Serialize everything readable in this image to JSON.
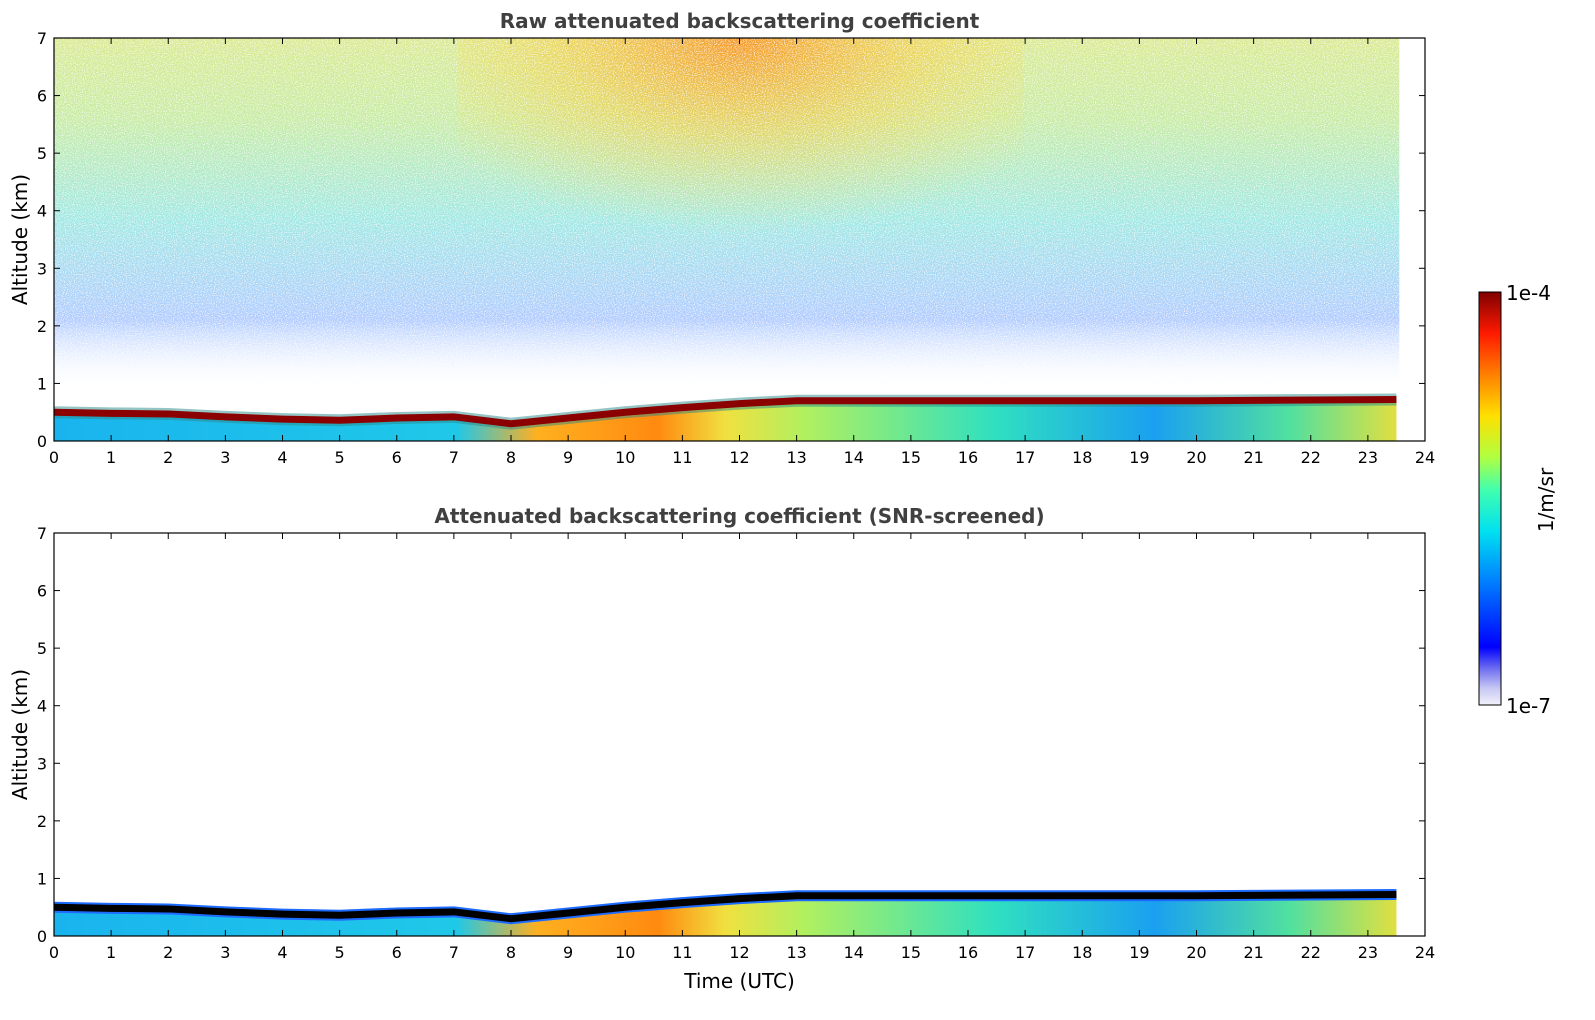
{
  "chart_data": [
    {
      "type": "heatmap",
      "title": "Raw attenuated backscattering coefficient",
      "xlabel": "",
      "ylabel": "Altitude (km)",
      "xlim": [
        0,
        24
      ],
      "ylim": [
        0,
        7
      ],
      "x_ticks": [
        "0",
        "1",
        "2",
        "3",
        "4",
        "5",
        "6",
        "7",
        "8",
        "9",
        "10",
        "11",
        "12",
        "13",
        "14",
        "15",
        "16",
        "17",
        "18",
        "19",
        "20",
        "21",
        "22",
        "23",
        "24"
      ],
      "y_ticks": [
        "0",
        "1",
        "2",
        "3",
        "4",
        "5",
        "6",
        "7"
      ],
      "data_extent_hours": [
        0,
        23.55
      ],
      "grid": false,
      "noise_field": true,
      "boundary_layer_top_km": [
        [
          0,
          0.5
        ],
        [
          1,
          0.48
        ],
        [
          2,
          0.47
        ],
        [
          3,
          0.42
        ],
        [
          4,
          0.38
        ],
        [
          5,
          0.36
        ],
        [
          6,
          0.4
        ],
        [
          7,
          0.42
        ],
        [
          8,
          0.3
        ],
        [
          9,
          0.4
        ],
        [
          10,
          0.5
        ],
        [
          11,
          0.58
        ],
        [
          12,
          0.65
        ],
        [
          13,
          0.7
        ],
        [
          16,
          0.7
        ],
        [
          20,
          0.7
        ],
        [
          23.5,
          0.72
        ]
      ]
    },
    {
      "type": "heatmap",
      "title": "Attenuated backscattering coefficient (SNR-screened)",
      "xlabel": "Time (UTC)",
      "ylabel": "Altitude (km)",
      "xlim": [
        0,
        24
      ],
      "ylim": [
        0,
        7
      ],
      "x_ticks": [
        "0",
        "1",
        "2",
        "3",
        "4",
        "5",
        "6",
        "7",
        "8",
        "9",
        "10",
        "11",
        "12",
        "13",
        "14",
        "15",
        "16",
        "17",
        "18",
        "19",
        "20",
        "21",
        "22",
        "23",
        "24"
      ],
      "y_ticks": [
        "0",
        "1",
        "2",
        "3",
        "4",
        "5",
        "6",
        "7"
      ],
      "data_extent_hours": [
        0,
        23.55
      ],
      "grid": false,
      "noise_field": false,
      "boundary_layer_top_km": [
        [
          0,
          0.5
        ],
        [
          1,
          0.48
        ],
        [
          2,
          0.47
        ],
        [
          3,
          0.42
        ],
        [
          4,
          0.38
        ],
        [
          5,
          0.36
        ],
        [
          6,
          0.4
        ],
        [
          7,
          0.42
        ],
        [
          8,
          0.3
        ],
        [
          9,
          0.4
        ],
        [
          10,
          0.5
        ],
        [
          11,
          0.58
        ],
        [
          12,
          0.65
        ],
        [
          13,
          0.7
        ],
        [
          16,
          0.7
        ],
        [
          20,
          0.7
        ],
        [
          23.5,
          0.72
        ]
      ]
    }
  ],
  "colorbar": {
    "label": "1/m/sr",
    "min_label": "1e-7",
    "max_label": "1e-4",
    "scale": "log",
    "colormap": "jet"
  }
}
